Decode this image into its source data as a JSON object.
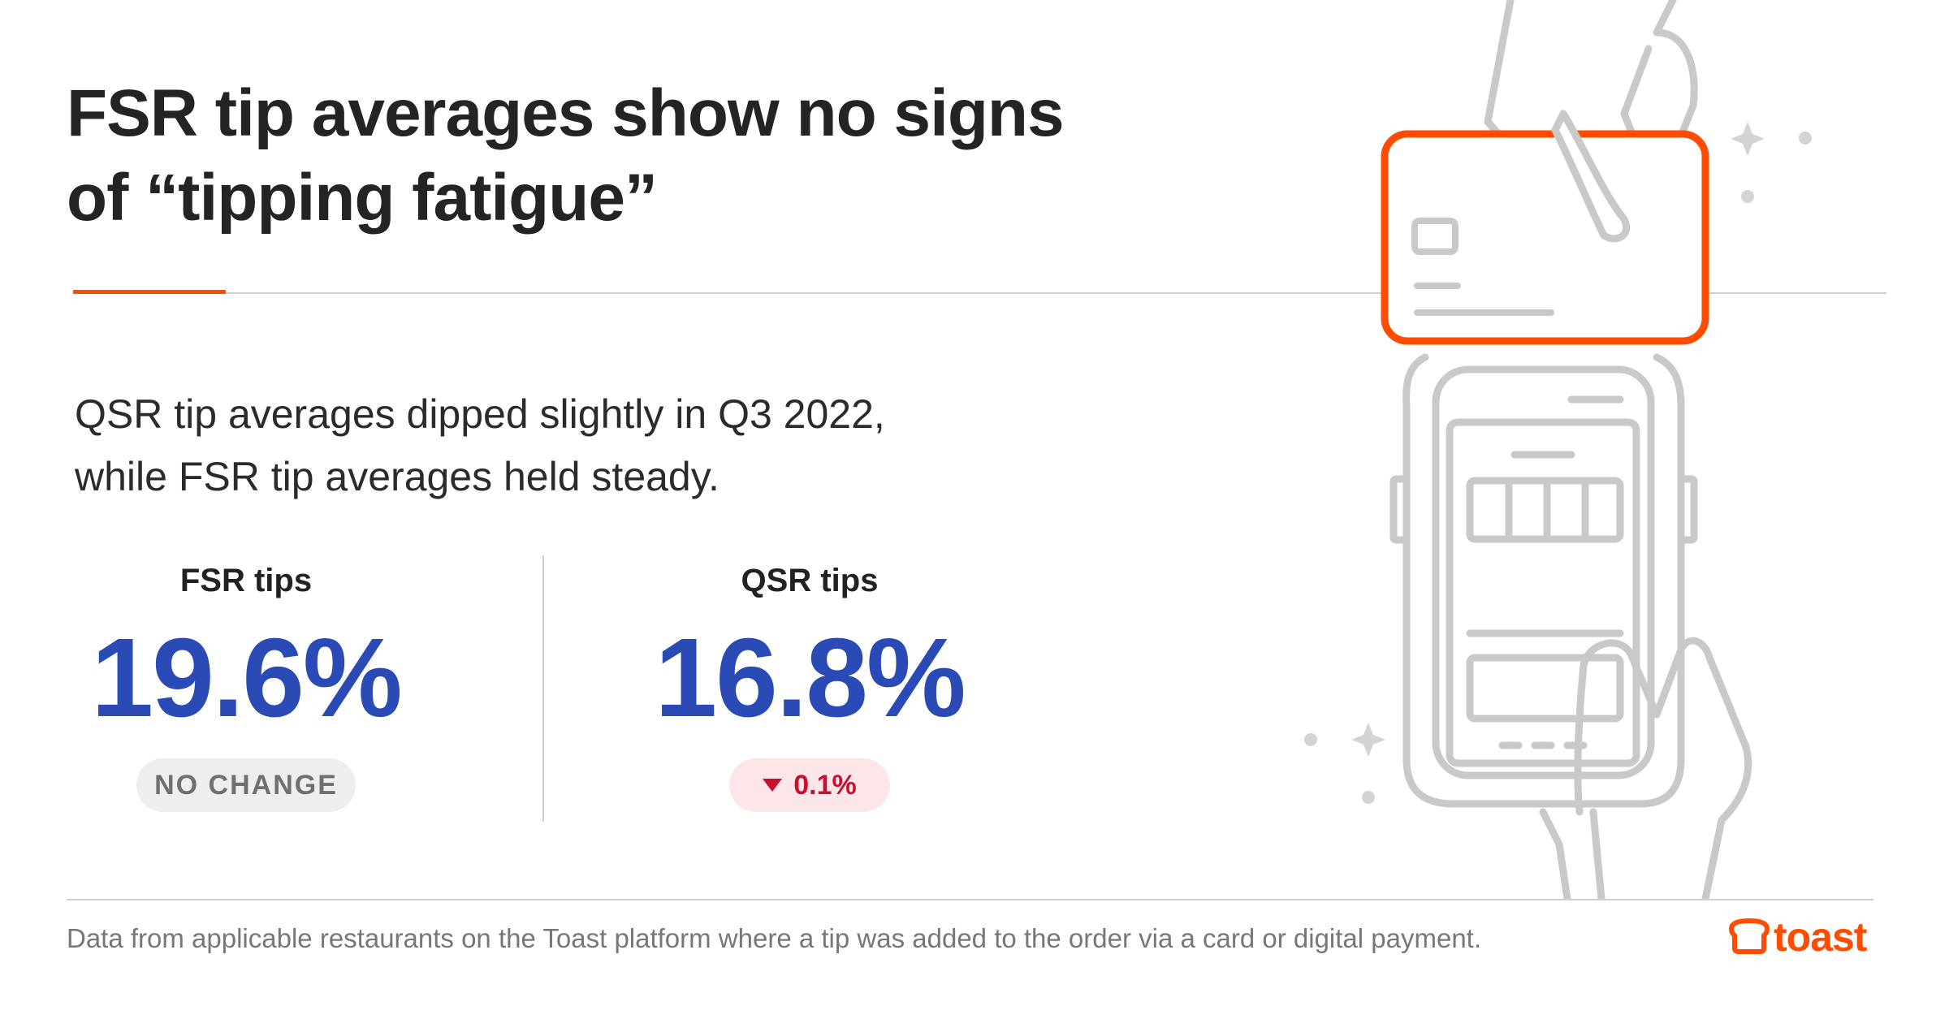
{
  "title": {
    "line1": "FSR tip averages show no signs",
    "line2": "of “tipping fatigue”"
  },
  "subtitle": {
    "line1": "QSR tip averages dipped slightly in Q3 2022,",
    "line2": "while FSR tip averages held steady."
  },
  "stats": {
    "fsr": {
      "label": "FSR tips",
      "value": "19.6%",
      "change": "NO CHANGE"
    },
    "qsr": {
      "label": "QSR tips",
      "value": "16.8%",
      "change": "0.1%",
      "direction": "down"
    }
  },
  "footnote": "Data from applicable restaurants on the Toast platform where a tip was added to the order via a card or digital payment.",
  "logo": {
    "text": "toast",
    "icon": "toast-logo-icon"
  },
  "illustration": {
    "icon": "hand-tap-card-phone-icon"
  },
  "colors": {
    "accent": "#ff4c00",
    "value_blue": "#2a4bb5",
    "down_red": "#c8102e",
    "down_bg": "#fde6ea",
    "neutral_bg": "#eeeeee",
    "line_grey": "#cfcfcf"
  }
}
